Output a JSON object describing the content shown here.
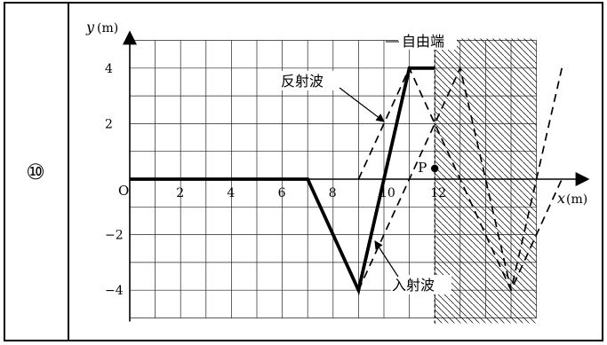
{
  "problem_number": "⑩",
  "chart_data": {
    "type": "line",
    "x_axis": {
      "label": "x",
      "unit": "(m)",
      "range": [
        0,
        17
      ],
      "ticks": [
        2,
        4,
        6,
        8,
        10,
        12
      ]
    },
    "y_axis": {
      "label": "y",
      "unit": "(m)",
      "range": [
        -5,
        5
      ],
      "ticks": [
        4,
        2,
        -2,
        -4
      ]
    },
    "origin_label": "O",
    "grid": true,
    "free_end_x": 12,
    "free_end_label": "自由端",
    "point": {
      "label": "P",
      "x": 12,
      "y": 0
    },
    "series": [
      {
        "name": "",
        "style": "bold",
        "x": [
          0,
          7,
          9,
          11,
          12
        ],
        "y": [
          0,
          0,
          -4,
          4,
          4
        ]
      },
      {
        "name": "入射波",
        "style": "dashed",
        "x": [
          9,
          13,
          15,
          17
        ],
        "y": [
          -4,
          4,
          -4,
          4
        ]
      },
      {
        "name": "反射波",
        "style": "dashed",
        "x": [
          9,
          11,
          15,
          17
        ],
        "y": [
          0,
          4,
          -4,
          0
        ]
      }
    ],
    "annotations": [
      {
        "text": "反射波",
        "target": "反射波"
      },
      {
        "text": "入射波",
        "target": "入射波"
      }
    ]
  }
}
